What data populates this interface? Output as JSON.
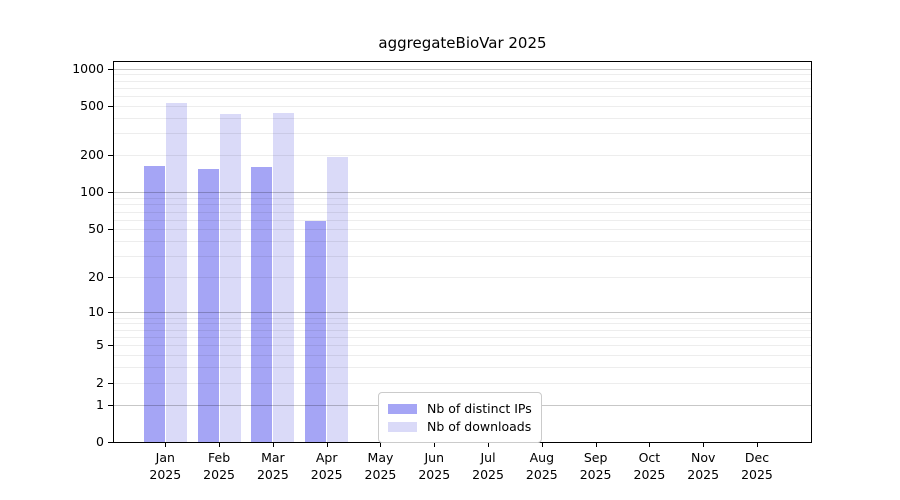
{
  "chart_data": {
    "type": "bar",
    "title": "aggregateBioVar 2025",
    "scale": "log10(1+y)",
    "grid": "on",
    "legend_position": "inside-bottom-center",
    "categories": [
      "Jan",
      "Feb",
      "Mar",
      "Apr",
      "May",
      "Jun",
      "Jul",
      "Aug",
      "Sep",
      "Oct",
      "Nov",
      "Dec"
    ],
    "category_year": "2025",
    "y_ticks": [
      0,
      1,
      2,
      5,
      10,
      20,
      50,
      100,
      200,
      500,
      1000
    ],
    "ylim": [
      0,
      1000
    ],
    "series": [
      {
        "name": "Nb of distinct IPs",
        "color": "#a5a5f5",
        "values": [
          165,
          156,
          160,
          59,
          0,
          0,
          0,
          0,
          0,
          0,
          0,
          0
        ]
      },
      {
        "name": "Nb of downloads",
        "color": "#dadaf8",
        "values": [
          530,
          433,
          437,
          193,
          0,
          0,
          0,
          0,
          0,
          0,
          0,
          0
        ]
      }
    ],
    "colors": {
      "major_grid": "rgba(0,0,0,0.22)",
      "minor_grid": "rgba(0,0,0,0.07)",
      "axis": "#000000",
      "background": "#ffffff"
    }
  }
}
